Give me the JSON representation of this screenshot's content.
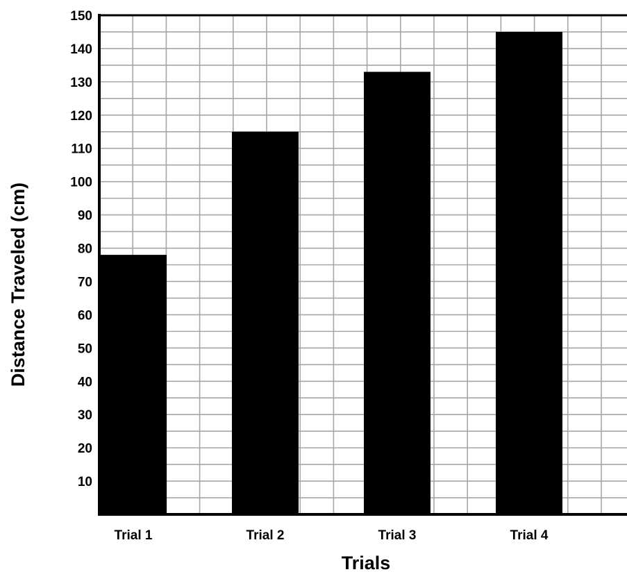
{
  "chart_data": {
    "type": "bar",
    "title": "",
    "xlabel": "Trials",
    "ylabel": "Distance Traveled (cm)",
    "categories": [
      "Trial 1",
      "Trial 2",
      "Trial 3",
      "Trial 4"
    ],
    "values": [
      78,
      115,
      133,
      145
    ],
    "ylim": [
      0,
      150
    ],
    "yticks": [
      10,
      20,
      30,
      40,
      50,
      60,
      70,
      80,
      90,
      100,
      110,
      120,
      130,
      140,
      150
    ],
    "grid": true,
    "colors": {
      "bar": "#000000",
      "grid": "#a6a6a6",
      "axis": "#000000"
    }
  }
}
